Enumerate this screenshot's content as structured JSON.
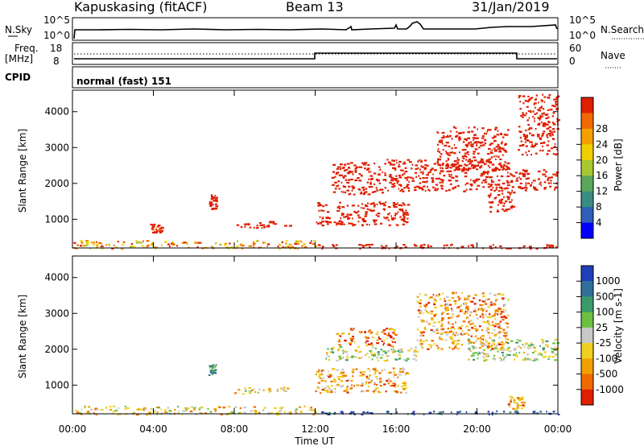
{
  "header": {
    "station": "Kapuskasing (fitACF)",
    "beam": "Beam 13",
    "date": "31/Jan/2019"
  },
  "noise_panel": {
    "left_label": "N.Sky",
    "right_label": "N.Search",
    "left_ticks": [
      "10^5",
      "10^0"
    ],
    "right_ticks": [
      "10^5",
      "10^0"
    ]
  },
  "freq_panel": {
    "left_label_1": "Freq.",
    "left_label_2": "[MHz]",
    "right_label": "Nave",
    "left_ticks": [
      "18",
      "8"
    ],
    "right_ticks": [
      "60",
      "0"
    ]
  },
  "cpid_panel": {
    "label": "CPID",
    "text": "normal (fast) 151"
  },
  "chart_data": [
    {
      "type": "heatmap",
      "name": "power",
      "xlabel": "",
      "ylabel": "Slant Range [km]",
      "xlim": [
        0,
        24
      ],
      "ylim": [
        200,
        4600
      ],
      "yticks": [
        1000,
        2000,
        3000,
        4000
      ],
      "colorbar": {
        "label": "Power [dB]",
        "ticks": [
          "4",
          "8",
          "12",
          "16",
          "20",
          "24",
          "28"
        ],
        "colors": [
          "#0000ff",
          "#2f5fb8",
          "#3a8d80",
          "#5ba85a",
          "#a8c832",
          "#f0d000",
          "#f3a000",
          "#ef6a00",
          "#e01e00"
        ]
      },
      "clusters": [
        {
          "t0": 0.0,
          "t1": 12.0,
          "r0": 200,
          "r1": 430,
          "v": 6
        },
        {
          "t0": 3.8,
          "t1": 4.4,
          "r0": 650,
          "r1": 900,
          "v": 9
        },
        {
          "t0": 6.7,
          "t1": 7.1,
          "r0": 1300,
          "r1": 1700,
          "v": 12
        },
        {
          "t0": 8.0,
          "t1": 10.8,
          "r0": 780,
          "r1": 960,
          "v": 14
        },
        {
          "t0": 12.0,
          "t1": 16.6,
          "r0": 850,
          "r1": 1500,
          "v": 16
        },
        {
          "t0": 12.8,
          "t1": 15.5,
          "r0": 1700,
          "r1": 2600,
          "v": 12
        },
        {
          "t0": 15.5,
          "t1": 21.5,
          "r0": 1800,
          "r1": 2700,
          "v": 13
        },
        {
          "t0": 18.0,
          "t1": 21.5,
          "r0": 2400,
          "r1": 3600,
          "v": 15
        },
        {
          "t0": 20.5,
          "t1": 21.8,
          "r0": 1200,
          "r1": 2000,
          "v": 26
        },
        {
          "t0": 21.5,
          "t1": 24.0,
          "r0": 1800,
          "r1": 2400,
          "v": 20
        },
        {
          "t0": 12.0,
          "t1": 24.0,
          "r0": 200,
          "r1": 320,
          "v": 10
        },
        {
          "t0": 22.0,
          "t1": 24.0,
          "r0": 2800,
          "r1": 4500,
          "v": 10
        }
      ]
    },
    {
      "type": "heatmap",
      "name": "velocity",
      "xlabel": "Time UT",
      "ylabel": "Slant Range [km]",
      "xlim": [
        0,
        24
      ],
      "ylim": [
        200,
        4600
      ],
      "yticks": [
        1000,
        2000,
        3000,
        4000
      ],
      "xticks": [
        "00:00",
        "04:00",
        "08:00",
        "12:00",
        "16:00",
        "20:00",
        "00:00"
      ],
      "colorbar": {
        "label": "Velocity [m s-1]",
        "ticks": [
          "1000",
          "500",
          "100",
          "25",
          "-25",
          "-100",
          "-500",
          "-1000"
        ],
        "colors": [
          "#1f3fb8",
          "#2f6f9a",
          "#3a9a6a",
          "#6cc040",
          "#c8c8c8",
          "#f0d020",
          "#f0a000",
          "#ef6a00",
          "#e01e00"
        ]
      },
      "clusters": [
        {
          "t0": 0.0,
          "t1": 12.0,
          "r0": 200,
          "r1": 430,
          "v": 5
        },
        {
          "t0": 6.7,
          "t1": 7.1,
          "r0": 1300,
          "r1": 1600,
          "v": 2
        },
        {
          "t0": 8.0,
          "t1": 10.8,
          "r0": 780,
          "r1": 960,
          "v": 5
        },
        {
          "t0": 12.0,
          "t1": 16.6,
          "r0": 800,
          "r1": 1500,
          "v": 6
        },
        {
          "t0": 13.0,
          "t1": 16.0,
          "r0": 2100,
          "r1": 2600,
          "v": 7
        },
        {
          "t0": 12.5,
          "t1": 17.0,
          "r0": 1700,
          "r1": 2100,
          "v": 4
        },
        {
          "t0": 17.0,
          "t1": 21.5,
          "r0": 2000,
          "r1": 3600,
          "v": 6
        },
        {
          "t0": 19.5,
          "t1": 24.0,
          "r0": 1700,
          "r1": 2300,
          "v": 4
        },
        {
          "t0": 21.5,
          "t1": 22.3,
          "r0": 350,
          "r1": 700,
          "v": 6
        },
        {
          "t0": 12.0,
          "t1": 24.0,
          "r0": 200,
          "r1": 300,
          "v": 0
        }
      ]
    }
  ]
}
